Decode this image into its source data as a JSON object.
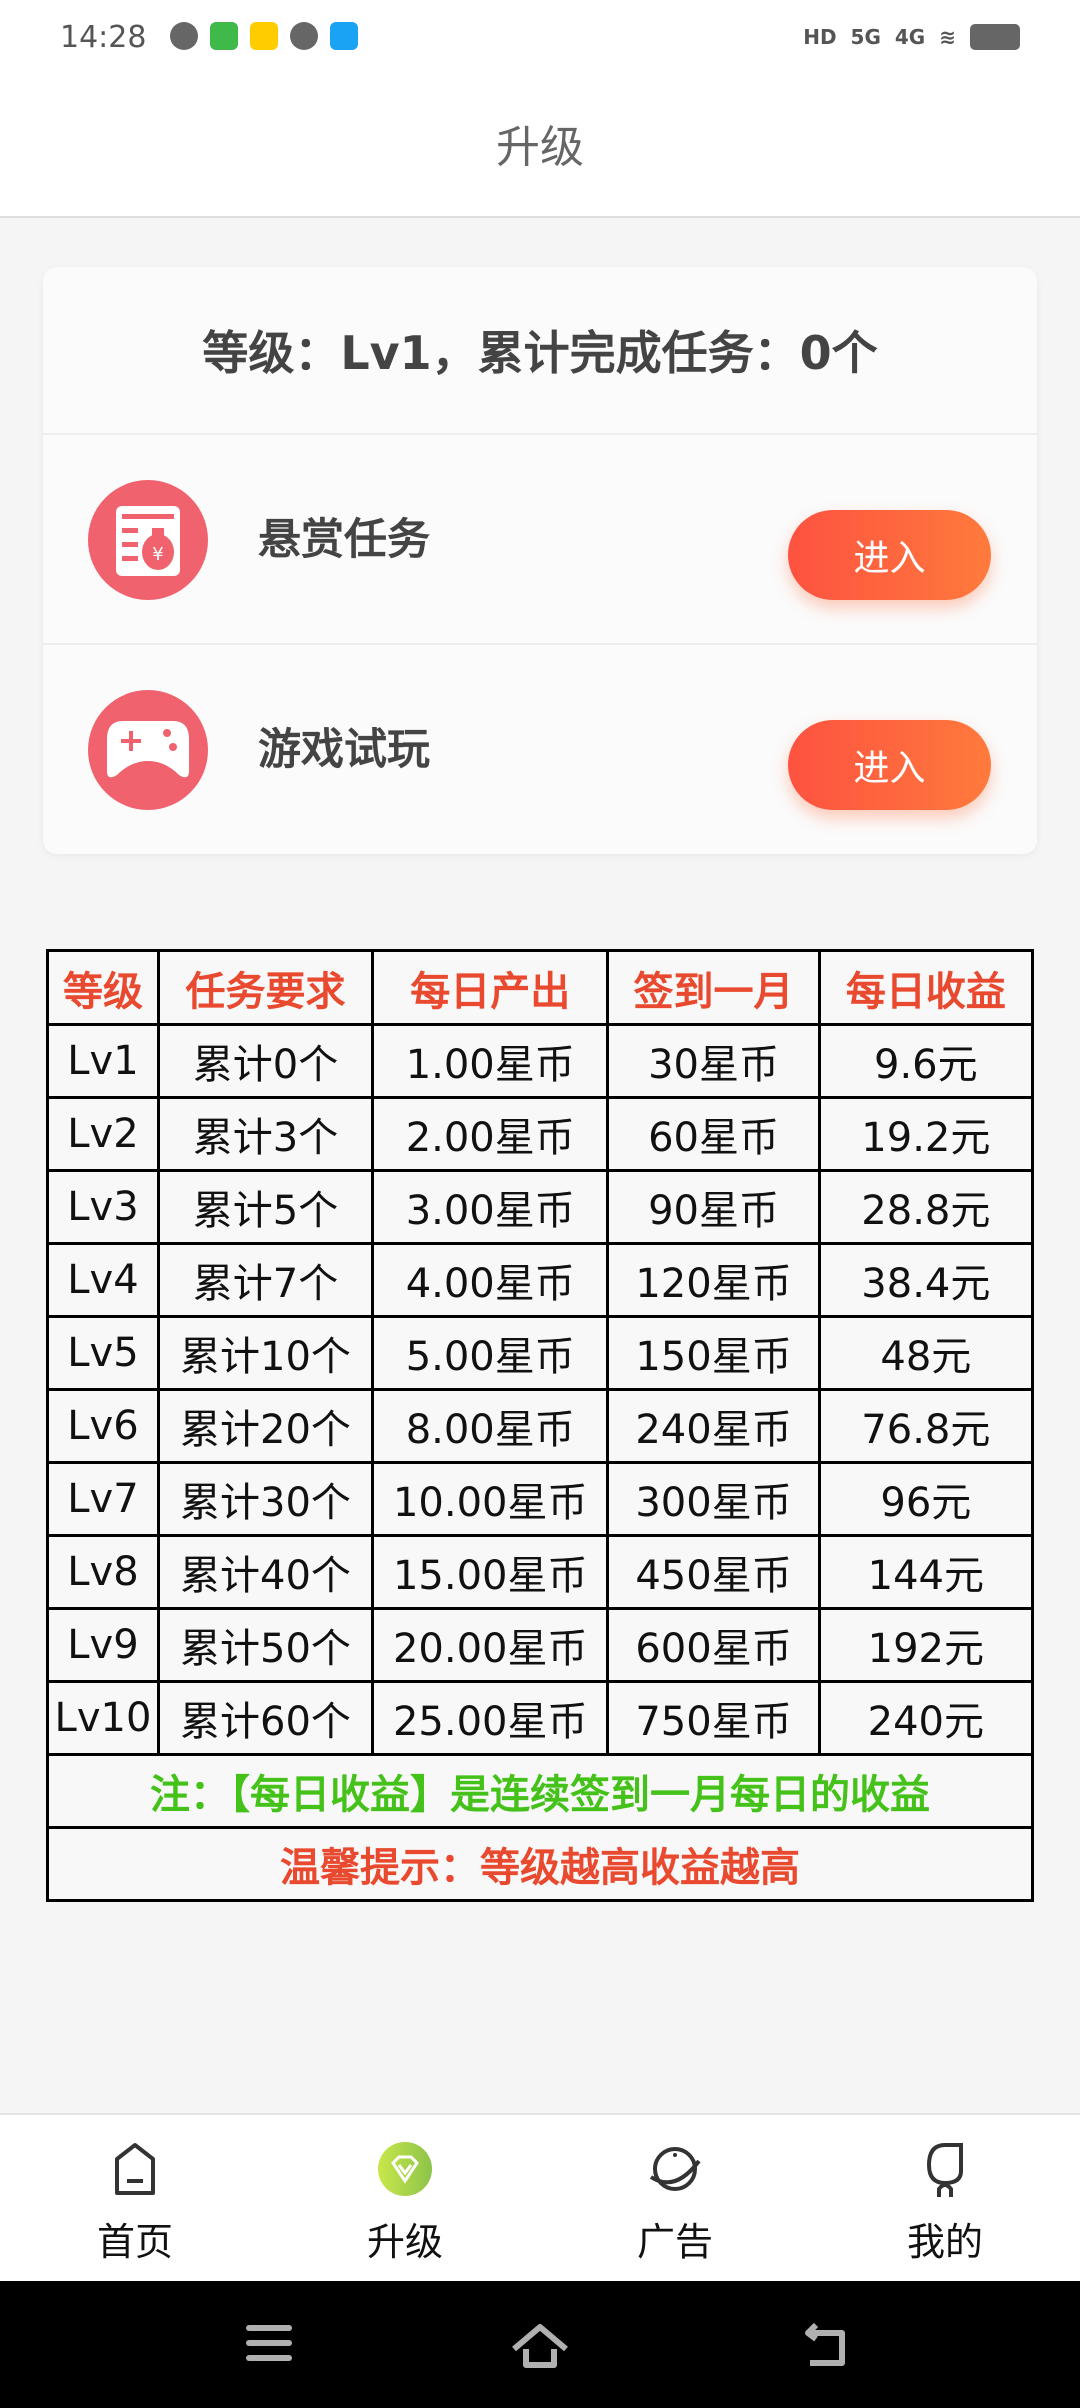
{
  "status_bar": {
    "time": "14:28",
    "network": [
      "HD",
      "5G",
      "4G"
    ]
  },
  "header": {
    "title": "升级"
  },
  "card": {
    "summary": "等级：Lv1，累计完成任务：0个",
    "items": [
      {
        "label": "悬赏任务",
        "icon": "reward-task-icon",
        "button": "进入"
      },
      {
        "label": "游戏试玩",
        "icon": "gamepad-icon",
        "button": "进入"
      }
    ]
  },
  "table": {
    "headers": [
      "等级",
      "任务要求",
      "每日产出",
      "签到一月",
      "每日收益"
    ],
    "rows": [
      [
        "Lv1",
        "累计0个",
        "1.00星币",
        "30星币",
        "9.6元"
      ],
      [
        "Lv2",
        "累计3个",
        "2.00星币",
        "60星币",
        "19.2元"
      ],
      [
        "Lv3",
        "累计5个",
        "3.00星币",
        "90星币",
        "28.8元"
      ],
      [
        "Lv4",
        "累计7个",
        "4.00星币",
        "120星币",
        "38.4元"
      ],
      [
        "Lv5",
        "累计10个",
        "5.00星币",
        "150星币",
        "48元"
      ],
      [
        "Lv6",
        "累计20个",
        "8.00星币",
        "240星币",
        "76.8元"
      ],
      [
        "Lv7",
        "累计30个",
        "10.00星币",
        "300星币",
        "96元"
      ],
      [
        "Lv8",
        "累计40个",
        "15.00星币",
        "450星币",
        "144元"
      ],
      [
        "Lv9",
        "累计50个",
        "20.00星币",
        "600星币",
        "192元"
      ],
      [
        "Lv10",
        "累计60个",
        "25.00星币",
        "750星币",
        "240元"
      ]
    ],
    "note": "注：【每日收益】是连续签到一月每日的收益",
    "tip": "温馨提示：等级越高收益越高"
  },
  "tabbar": {
    "items": [
      {
        "label": "首页",
        "icon": "home-icon"
      },
      {
        "label": "升级",
        "icon": "diamond-icon",
        "active": true
      },
      {
        "label": "广告",
        "icon": "planet-icon"
      },
      {
        "label": "我的",
        "icon": "profile-icon"
      }
    ]
  },
  "colors": {
    "accent": "#e8492f",
    "note": "#44c21a",
    "button": "#fd5240",
    "icon_bg": "#f0636e",
    "active_tab": "#a8d645"
  }
}
